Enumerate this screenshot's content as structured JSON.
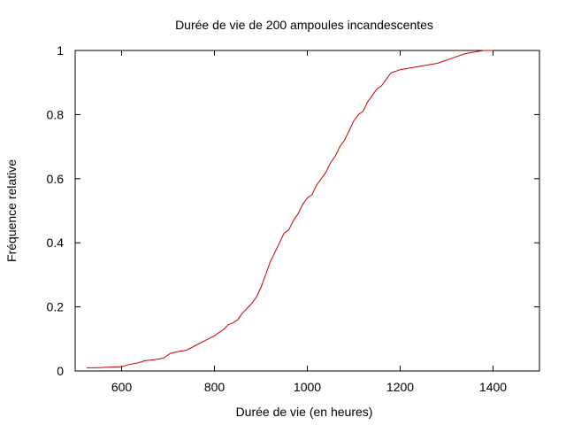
{
  "chart_data": {
    "type": "line",
    "title": "Durée de vie de 200 ampoules incandescentes",
    "xlabel": "Durée de vie (en heures)",
    "ylabel": "Fréquence relative",
    "xlim": [
      500,
      1500
    ],
    "ylim": [
      0,
      1
    ],
    "x_ticks": [
      600,
      800,
      1000,
      1200,
      1400
    ],
    "y_ticks": [
      0,
      0.2,
      0.4,
      0.6,
      0.8,
      1
    ],
    "y_tick_labels": [
      "0",
      "0.2",
      "0.4",
      "0.6",
      "0.8",
      "1"
    ],
    "grid": false,
    "legend": "none",
    "line_color": "#cc0000",
    "series": [
      {
        "x": [
          525,
          545,
          570,
          600,
          615,
          635,
          650,
          670,
          690,
          700,
          705,
          720,
          740,
          760,
          780,
          800,
          820,
          830,
          840,
          850,
          860,
          870,
          880,
          890,
          900,
          910,
          920,
          930,
          940,
          950,
          960,
          970,
          980,
          990,
          1000,
          1010,
          1020,
          1030,
          1040,
          1050,
          1060,
          1070,
          1080,
          1090,
          1100,
          1110,
          1120,
          1130,
          1140,
          1150,
          1160,
          1170,
          1180,
          1190,
          1200,
          1220,
          1240,
          1260,
          1280,
          1300,
          1320,
          1340,
          1360,
          1380,
          1400
        ],
        "y": [
          0.01,
          0.01,
          0.012,
          0.013,
          0.02,
          0.025,
          0.032,
          0.035,
          0.04,
          0.05,
          0.055,
          0.06,
          0.065,
          0.08,
          0.095,
          0.11,
          0.13,
          0.145,
          0.15,
          0.16,
          0.18,
          0.195,
          0.21,
          0.23,
          0.26,
          0.3,
          0.34,
          0.37,
          0.4,
          0.43,
          0.44,
          0.47,
          0.49,
          0.52,
          0.54,
          0.55,
          0.58,
          0.6,
          0.62,
          0.65,
          0.67,
          0.7,
          0.72,
          0.75,
          0.78,
          0.8,
          0.81,
          0.84,
          0.86,
          0.88,
          0.89,
          0.91,
          0.93,
          0.935,
          0.94,
          0.945,
          0.95,
          0.955,
          0.96,
          0.97,
          0.98,
          0.99,
          0.995,
          1.0,
          1.0
        ]
      }
    ]
  }
}
